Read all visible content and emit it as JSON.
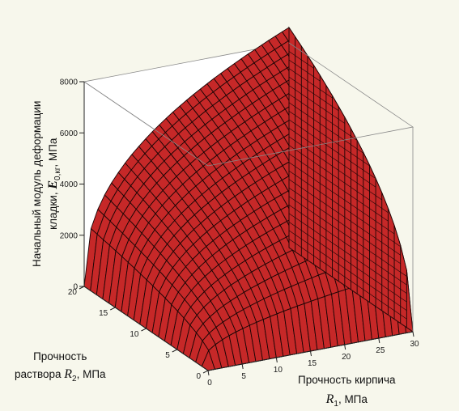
{
  "chart_data": {
    "type": "surface",
    "title": "",
    "zlabel": {
      "line1": "Начальный модуль деформации",
      "line2_prefix": "кладки, ",
      "var": "E",
      "sub": "0,кг",
      "unit": ", МПа"
    },
    "xlabel": {
      "line1": "Прочность кирпича",
      "var": "R",
      "sub": "1",
      "unit": ", МПа"
    },
    "ylabel": {
      "line1": "Прочность",
      "line2_prefix": "раствора ",
      "var": "R",
      "sub": "2",
      "unit": ", МПа"
    },
    "xlim": [
      0,
      30
    ],
    "ylim": [
      0,
      20
    ],
    "zlim": [
      0,
      8000
    ],
    "x_ticks": [
      "0",
      "5",
      "10",
      "15",
      "20",
      "25",
      "30"
    ],
    "y_ticks": [
      "0",
      "5",
      "10",
      "15",
      "20"
    ],
    "z_ticks": [
      "0",
      "2000",
      "4000",
      "6000",
      "8000"
    ],
    "surface_color": "#c62828",
    "grid_line_color": "#1a0505",
    "surface_samples": {
      "x": [
        0,
        10,
        20,
        30
      ],
      "y_at_max": [
        20,
        20,
        20,
        20
      ],
      "z_at_max_y": [
        0,
        6400,
        7550,
        8500
      ],
      "z_at_y0": [
        0,
        0,
        0,
        0
      ]
    },
    "grid_density": {
      "x_lines": 30,
      "y_lines": 20
    }
  }
}
